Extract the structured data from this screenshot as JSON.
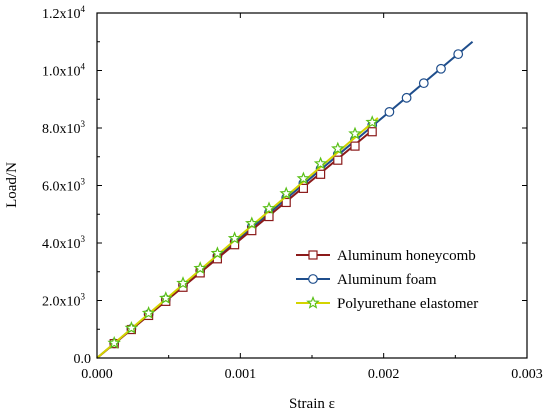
{
  "chart_data": {
    "type": "line",
    "title": "",
    "xlabel": "Strain ε",
    "ylabel": "Load/N",
    "xlim": [
      0,
      0.003
    ],
    "ylim": [
      0,
      12000
    ],
    "x_ticks": [
      {
        "value": 0,
        "label": "0.000"
      },
      {
        "value": 0.001,
        "label": "0.001"
      },
      {
        "value": 0.002,
        "label": "0.002"
      },
      {
        "value": 0.003,
        "label": "0.003"
      }
    ],
    "y_ticks": [
      {
        "value": 0,
        "label": "0.0",
        "exp": ""
      },
      {
        "value": 2000,
        "label": "2.0x10",
        "exp": "3"
      },
      {
        "value": 4000,
        "label": "4.0x10",
        "exp": "3"
      },
      {
        "value": 6000,
        "label": "6.0x10",
        "exp": "3"
      },
      {
        "value": 8000,
        "label": "8.0x10",
        "exp": "3"
      },
      {
        "value": 10000,
        "label": "1.0x10",
        "exp": "4"
      },
      {
        "value": 12000,
        "label": "1.2x10",
        "exp": "4"
      }
    ],
    "grid": false,
    "legend_position": "bottom-right",
    "series": [
      {
        "name": "Aluminum honeycomb",
        "color": "#8b1a1a",
        "marker": "square",
        "x": [
          0,
          0.00194
        ],
        "y": [
          0,
          8000
        ],
        "marker_x": [
          0.00012,
          0.00024,
          0.00036,
          0.00048,
          0.0006,
          0.00072,
          0.00084,
          0.00096,
          0.00108,
          0.0012,
          0.00132,
          0.00144,
          0.00156,
          0.00168,
          0.0018,
          0.00192
        ],
        "marker_y": [
          500,
          990,
          1480,
          1970,
          2460,
          2960,
          3450,
          3940,
          4430,
          4920,
          5410,
          5900,
          6390,
          6880,
          7370,
          7870
        ]
      },
      {
        "name": "Aluminum foam",
        "color": "#1f4e8c",
        "marker": "circle",
        "x": [
          0,
          0.00262
        ],
        "y": [
          0,
          11000
        ],
        "marker_x": [
          0.00012,
          0.00024,
          0.00036,
          0.00048,
          0.0006,
          0.00072,
          0.00084,
          0.00096,
          0.00108,
          0.0012,
          0.00132,
          0.00144,
          0.00156,
          0.00168,
          0.0018,
          0.00192,
          0.00204,
          0.00216,
          0.00228,
          0.0024,
          0.00252
        ],
        "marker_y": [
          510,
          1010,
          1520,
          2030,
          2530,
          3040,
          3540,
          4050,
          4560,
          5060,
          5570,
          6080,
          6580,
          7090,
          7600,
          8100,
          8560,
          9050,
          9560,
          10060,
          10570
        ]
      },
      {
        "name": "Polyurethane elastomer",
        "color": "#d4d400",
        "marker_color": "#5ac018",
        "marker": "star",
        "x": [
          0,
          0.00196
        ],
        "y": [
          0,
          8350
        ],
        "marker_x": [
          0.00012,
          0.00024,
          0.00036,
          0.00048,
          0.0006,
          0.00072,
          0.00084,
          0.00096,
          0.00108,
          0.0012,
          0.00132,
          0.00144,
          0.00156,
          0.00168,
          0.0018,
          0.00192
        ],
        "marker_y": [
          520,
          1040,
          1560,
          2080,
          2600,
          3120,
          3640,
          4160,
          4680,
          5200,
          5720,
          6240,
          6760,
          7280,
          7800,
          8200
        ]
      }
    ]
  }
}
